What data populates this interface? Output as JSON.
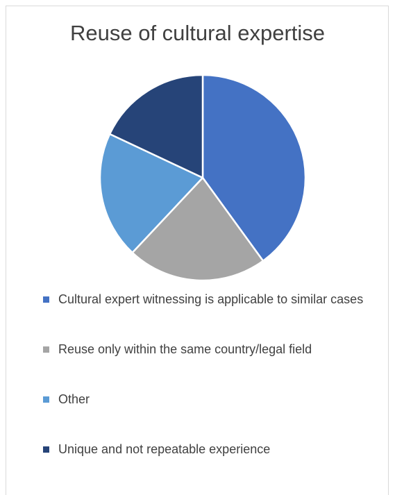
{
  "chart_data": {
    "type": "pie",
    "title": "Reuse of cultural expertise",
    "legend_position": "bottom",
    "categories": [
      "Cultural expert witnessing is applicable to similar cases",
      "Reuse only within the same country/legal field",
      "Other",
      "Unique and not repeatable experience"
    ],
    "values": [
      40,
      22,
      20,
      18
    ],
    "colors": [
      "#4472c4",
      "#a5a5a5",
      "#5b9bd5",
      "#264478"
    ]
  }
}
